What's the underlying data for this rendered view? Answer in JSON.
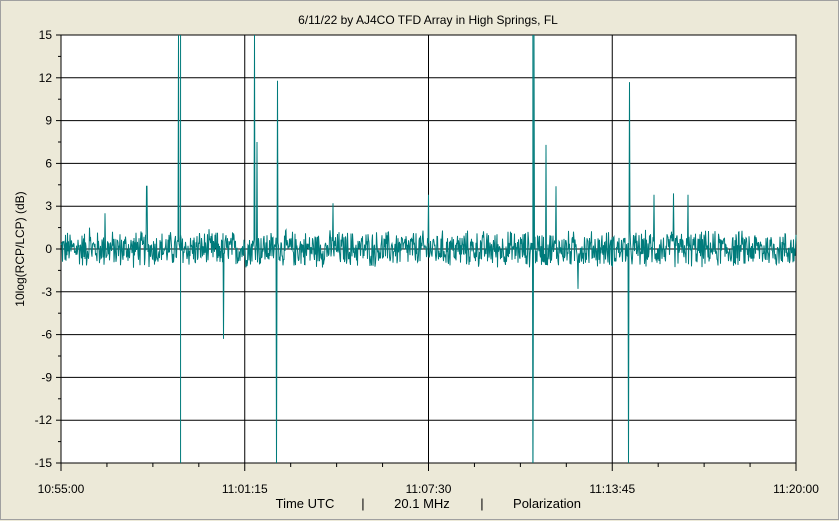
{
  "chart_data": {
    "type": "line",
    "title": "6/11/22  by  AJ4CO TFD Array  in  High Springs, FL",
    "ylabel": "10log(RCP/LCP)  (dB)",
    "xlabel_parts": [
      "Time UTC",
      "|",
      "20.1 MHz",
      "|",
      "Polarization"
    ],
    "ylim": [
      -15,
      15
    ],
    "y_ticks": [
      15,
      12,
      9,
      6,
      3,
      0,
      -3,
      -6,
      -9,
      -12,
      -15
    ],
    "xlim_seconds_after_start": [
      0,
      1500
    ],
    "x_ticks": [
      {
        "label": "10:55:00",
        "t": 0
      },
      {
        "label": "11:01:15",
        "t": 375
      },
      {
        "label": "11:07:30",
        "t": 750
      },
      {
        "label": "11:13:45",
        "t": 1125
      },
      {
        "label": "11:20:00",
        "t": 1500
      }
    ],
    "grid": true,
    "series": [
      {
        "name": "",
        "color": "#007b7b",
        "baseline_db": 0,
        "noise_band_db": [
          -1.2,
          1.2
        ],
        "peaks": [
          {
            "t": 58,
            "db": 1.5
          },
          {
            "t": 90,
            "db": 2.5
          },
          {
            "t": 175,
            "db": 4.4
          },
          {
            "t": 240,
            "db": 15
          },
          {
            "t": 332,
            "db": -6.3
          },
          {
            "t": 395,
            "db": 15
          },
          {
            "t": 400,
            "db": 7.5
          },
          {
            "t": 440,
            "db": -15
          },
          {
            "t": 442,
            "db": 11.8
          },
          {
            "t": 555,
            "db": 3.2
          },
          {
            "t": 750,
            "db": 3.8
          },
          {
            "t": 965,
            "db": 15
          },
          {
            "t": 963,
            "db": -15
          },
          {
            "t": 990,
            "db": 7.3
          },
          {
            "t": 1010,
            "db": 4.4
          },
          {
            "t": 1055,
            "db": -2.8
          },
          {
            "t": 1160,
            "db": 11.7
          },
          {
            "t": 1158,
            "db": -15
          },
          {
            "t": 1210,
            "db": 3.8
          },
          {
            "t": 1250,
            "db": 3.9
          },
          {
            "t": 1280,
            "db": 3.8
          }
        ]
      }
    ],
    "spike_lines": [
      {
        "t": 244,
        "db_top": 15,
        "db_bottom": -15
      },
      {
        "t": 963,
        "db_top": 15,
        "db_bottom": -15
      }
    ]
  }
}
